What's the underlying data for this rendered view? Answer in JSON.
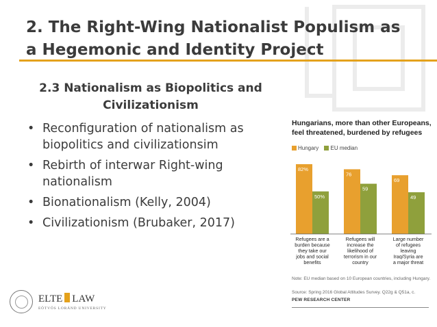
{
  "slide": {
    "title": "2. The Right-Wing Nationalist Populism as a Hegemonic and Identity Project",
    "subtitle": "2.3 Nationalism as Biopolitics and Civilizationism",
    "bullets": [
      "Reconfiguration of nationalism as biopolitics and civilizationsim",
      "Rebirth of interwar Right-wing nationalism",
      "Bionationalism (Kelly, 2004)",
      "Civilizationism (Brubaker, 2017)"
    ],
    "bullet_glyph": "•",
    "accent_color": "#e4a11b"
  },
  "chart": {
    "title": "Hungarians, more than other Europeans, feel threatened, burdened by refugees",
    "note": "Note: EU median based on 10 European countries, including Hungary.",
    "source": "Source: Spring 2016 Global Attitudes Survey. Q22g & Q51a, c.",
    "credit": "PEW RESEARCH CENTER"
  },
  "chart_data": {
    "type": "bar",
    "title": "Hungarians, more than other Europeans, feel threatened, burdened by refugees",
    "categories": [
      "Refugees are a burden because they take our jobs and social benefits",
      "Refugees will increase the likelihood of terrorism in our country",
      "Large number of refugees leaving Iraq/Syria are a major threat"
    ],
    "category_lines": [
      [
        "Refugees are a",
        "burden because",
        "they take our",
        "jobs and social",
        "benefits"
      ],
      [
        "Refugees will",
        "increase the",
        "likelihood of",
        "terrorism in our",
        "country"
      ],
      [
        "Large number",
        "of refugees",
        "leaving",
        "Iraq/Syria are",
        "a major threat"
      ]
    ],
    "series": [
      {
        "name": "Hungary",
        "values": [
          82,
          76,
          69
        ],
        "labels": [
          "82%",
          "76",
          "69"
        ],
        "color": "#e8a02e"
      },
      {
        "name": "EU median",
        "values": [
          50,
          59,
          49
        ],
        "labels": [
          "50%",
          "59",
          "49"
        ],
        "color": "#8fa03c"
      }
    ],
    "ylim": [
      0,
      90
    ],
    "legend_position": "top-left",
    "grid": false
  },
  "logo": {
    "name_left": "ELTE",
    "name_right": "LAW",
    "subline": "EÖTVÖS LORÁND UNIVERSITY"
  }
}
